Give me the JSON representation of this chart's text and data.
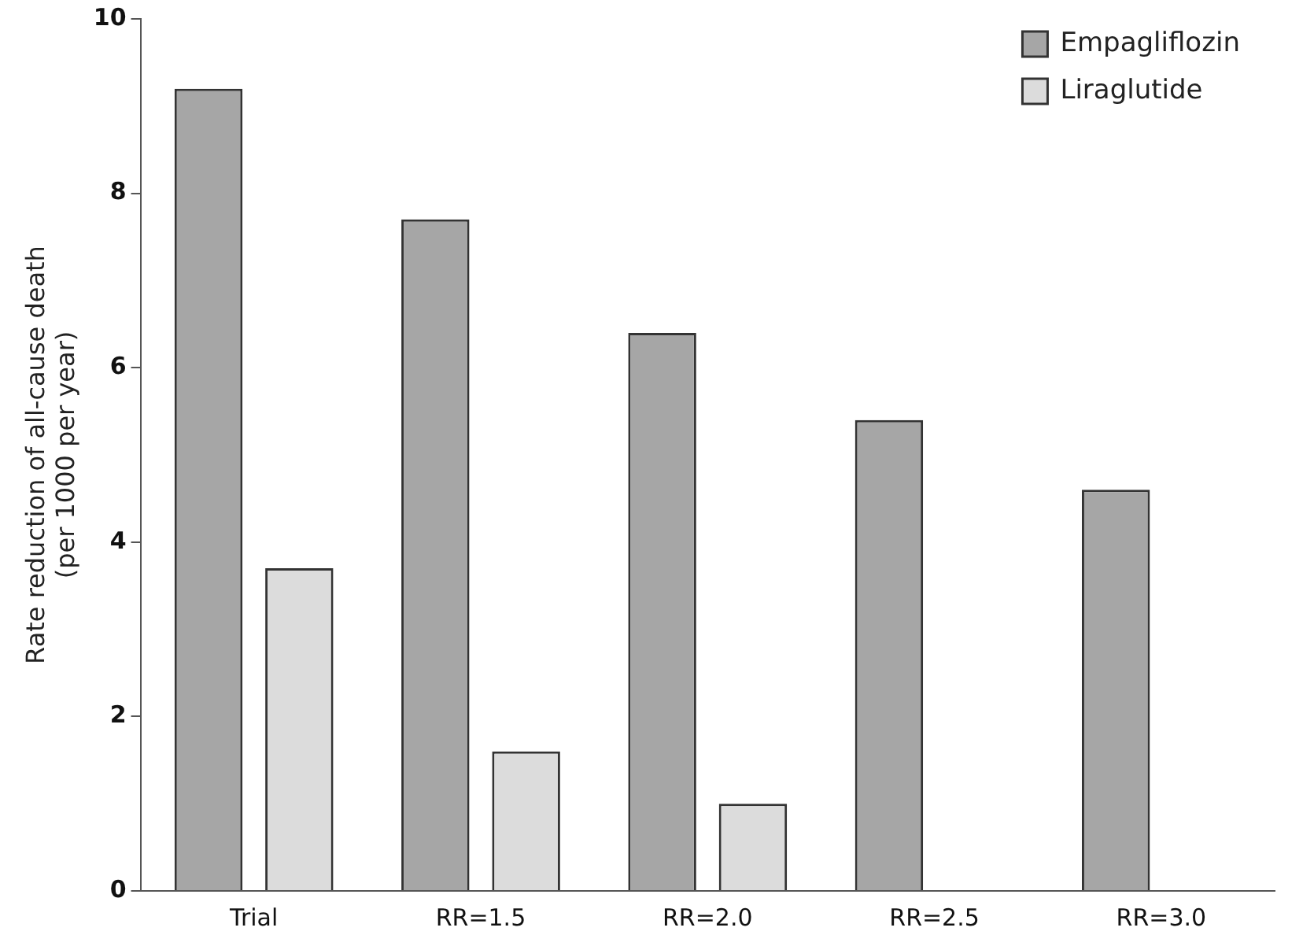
{
  "chart_data": {
    "type": "bar",
    "ylabel": "Rate reduction of all-cause death\n(per 1000 per year)",
    "categories": [
      "Trial",
      "RR=1.5",
      "RR=2.0",
      "RR=2.5",
      "RR=3.0"
    ],
    "series": [
      {
        "name": "Empagliflozin",
        "color": "#a6a6a6",
        "values": [
          9.2,
          7.7,
          6.4,
          5.4,
          4.6
        ]
      },
      {
        "name": "Liraglutide",
        "color": "#dcdcdc",
        "values": [
          3.7,
          1.6,
          1.0,
          null,
          null
        ]
      }
    ],
    "ylim": [
      0,
      10
    ],
    "yticks": [
      0,
      2,
      4,
      6,
      8,
      10
    ],
    "grid": false,
    "legend": "top right"
  }
}
